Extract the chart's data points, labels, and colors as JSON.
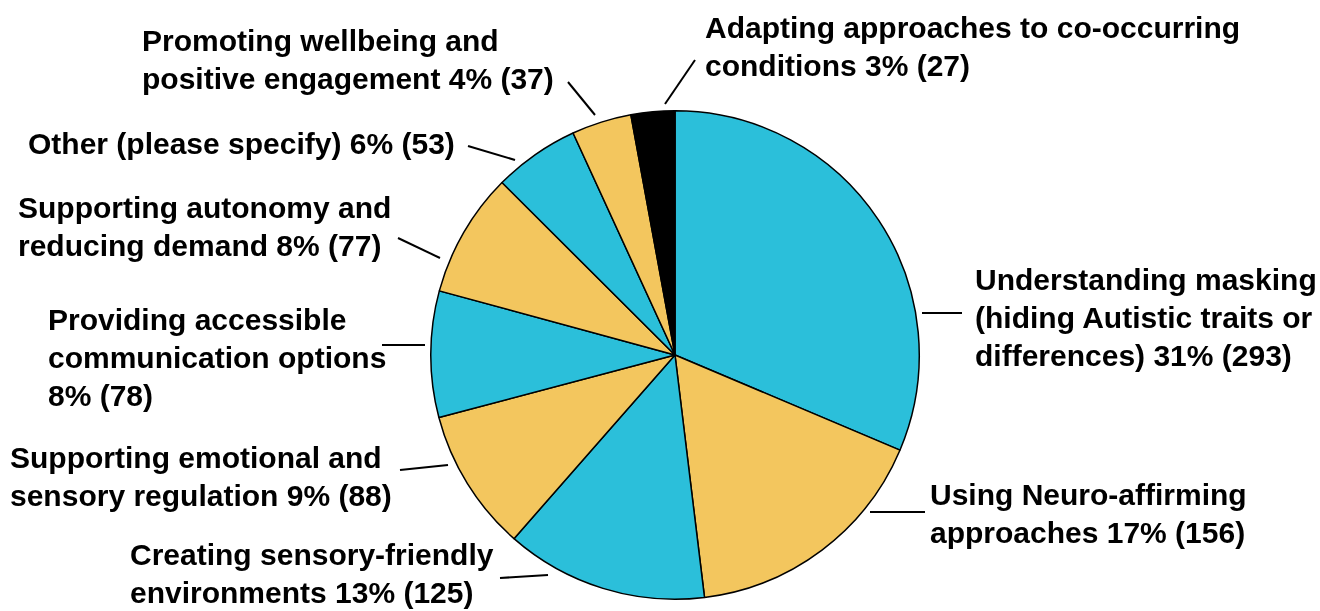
{
  "chart_data": {
    "type": "pie",
    "categories": [
      "Understanding masking (hiding Autistic traits or differences)",
      "Using Neuro-affirming approaches",
      "Creating sensory-friendly environments",
      "Supporting emotional and sensory regulation",
      "Providing accessible communication options",
      "Supporting autonomy and reducing demand",
      "Other (please specify)",
      "Promoting wellbeing and positive engagement",
      "Adapting approaches to co-occurring conditions"
    ],
    "values": [
      293,
      156,
      125,
      88,
      78,
      77,
      53,
      37,
      27
    ],
    "value_labels": [
      "31% (293)",
      "17% (156)",
      "13% (125)",
      "9% (88)",
      "8% (78)",
      "8% (77)",
      "6% (53)",
      "4% (37)",
      "3% (27)"
    ],
    "colors": [
      "#2bbfda",
      "#f3c65e",
      "#2bbfda",
      "#f3c65e",
      "#2bbfda",
      "#f3c65e",
      "#2bbfda",
      "#f3c65e",
      "#000000"
    ],
    "legend": false
  }
}
